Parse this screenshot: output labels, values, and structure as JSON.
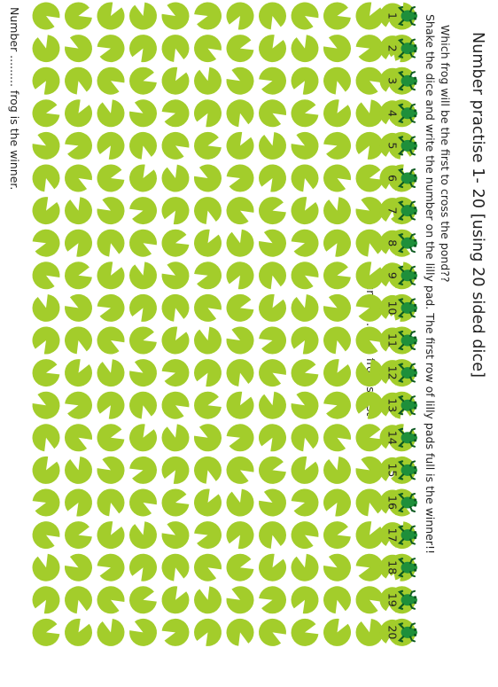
{
  "title": "Number practise 1- 20  [using 20 sided dice]",
  "instructions": [
    "Which frog will be the first to cross the pond??",
    "Shake the dice and write the number on the lilly pad. The first row of lilly pads full is the winner!!"
  ],
  "footer": {
    "winner": "Number ......... frog is the winner.",
    "last": "Number ......... frog is last"
  },
  "frogs": [
    "1",
    "2",
    "3",
    "4",
    "5",
    "6",
    "7",
    "8",
    "9",
    "10",
    "11",
    "12",
    "13",
    "14",
    "15",
    "16",
    "17",
    "18",
    "19",
    "20"
  ],
  "pads_per_row": 12,
  "colors": {
    "lily_pad": "#a3cd2b",
    "frog": "#1e8f3a",
    "frog_dark": "#0e5a22",
    "text": "#222222"
  },
  "icons": {
    "pad": "lily-pad-icon",
    "frog": "frog-icon"
  }
}
